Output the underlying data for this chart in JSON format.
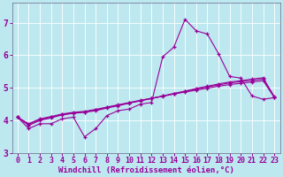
{
  "xlabel": "Windchill (Refroidissement éolien,°C)",
  "xlim": [
    -0.5,
    23.5
  ],
  "ylim": [
    3.0,
    7.6
  ],
  "yticks": [
    3,
    4,
    5,
    6,
    7
  ],
  "xticks": [
    0,
    1,
    2,
    3,
    4,
    5,
    6,
    7,
    8,
    9,
    10,
    11,
    12,
    13,
    14,
    15,
    16,
    17,
    18,
    19,
    20,
    21,
    22,
    23
  ],
  "background_color": "#bde8f0",
  "line_color": "#990099",
  "line1_x": [
    0,
    1,
    2,
    3,
    4,
    5,
    6,
    7,
    8,
    9,
    10,
    11,
    12,
    13,
    14,
    15,
    16,
    17,
    18,
    19,
    20,
    21,
    22,
    23
  ],
  "line1_y": [
    4.1,
    3.75,
    3.9,
    3.9,
    4.05,
    4.1,
    3.5,
    3.75,
    4.15,
    4.3,
    4.35,
    4.5,
    4.55,
    5.95,
    6.25,
    7.1,
    6.75,
    6.65,
    6.05,
    5.35,
    5.3,
    4.75,
    4.65,
    4.7
  ],
  "line2_x": [
    0,
    1,
    2,
    3,
    4,
    5,
    6,
    7,
    8,
    9,
    10,
    11,
    12,
    13,
    14,
    15,
    16,
    17,
    18,
    19,
    20,
    21,
    22,
    23
  ],
  "line2_y": [
    4.1,
    3.85,
    4.0,
    4.08,
    4.17,
    4.22,
    4.25,
    4.3,
    4.38,
    4.45,
    4.53,
    4.6,
    4.67,
    4.75,
    4.83,
    4.9,
    4.98,
    5.05,
    5.12,
    5.18,
    5.22,
    5.27,
    5.31,
    4.72
  ],
  "line3_x": [
    0,
    1,
    2,
    3,
    4,
    5,
    6,
    7,
    8,
    9,
    10,
    11,
    12,
    13,
    14,
    15,
    16,
    17,
    18,
    19,
    20,
    21,
    22,
    23
  ],
  "line3_y": [
    4.1,
    3.88,
    4.03,
    4.1,
    4.18,
    4.23,
    4.26,
    4.32,
    4.4,
    4.47,
    4.54,
    4.61,
    4.68,
    4.75,
    4.82,
    4.89,
    4.96,
    5.03,
    5.09,
    5.15,
    5.19,
    5.23,
    5.27,
    4.73
  ],
  "line4_x": [
    0,
    1,
    2,
    3,
    4,
    5,
    6,
    7,
    8,
    9,
    10,
    11,
    12,
    13,
    14,
    15,
    16,
    17,
    18,
    19,
    20,
    21,
    22,
    23
  ],
  "line4_y": [
    4.1,
    3.9,
    4.05,
    4.12,
    4.2,
    4.25,
    4.28,
    4.34,
    4.41,
    4.48,
    4.55,
    4.62,
    4.68,
    4.74,
    4.81,
    4.87,
    4.93,
    4.99,
    5.05,
    5.1,
    5.14,
    5.18,
    5.22,
    4.7
  ],
  "marker": "+",
  "markersize": 3,
  "linewidth": 0.8,
  "xlabel_fontsize": 6.5,
  "tick_fontsize": 6
}
